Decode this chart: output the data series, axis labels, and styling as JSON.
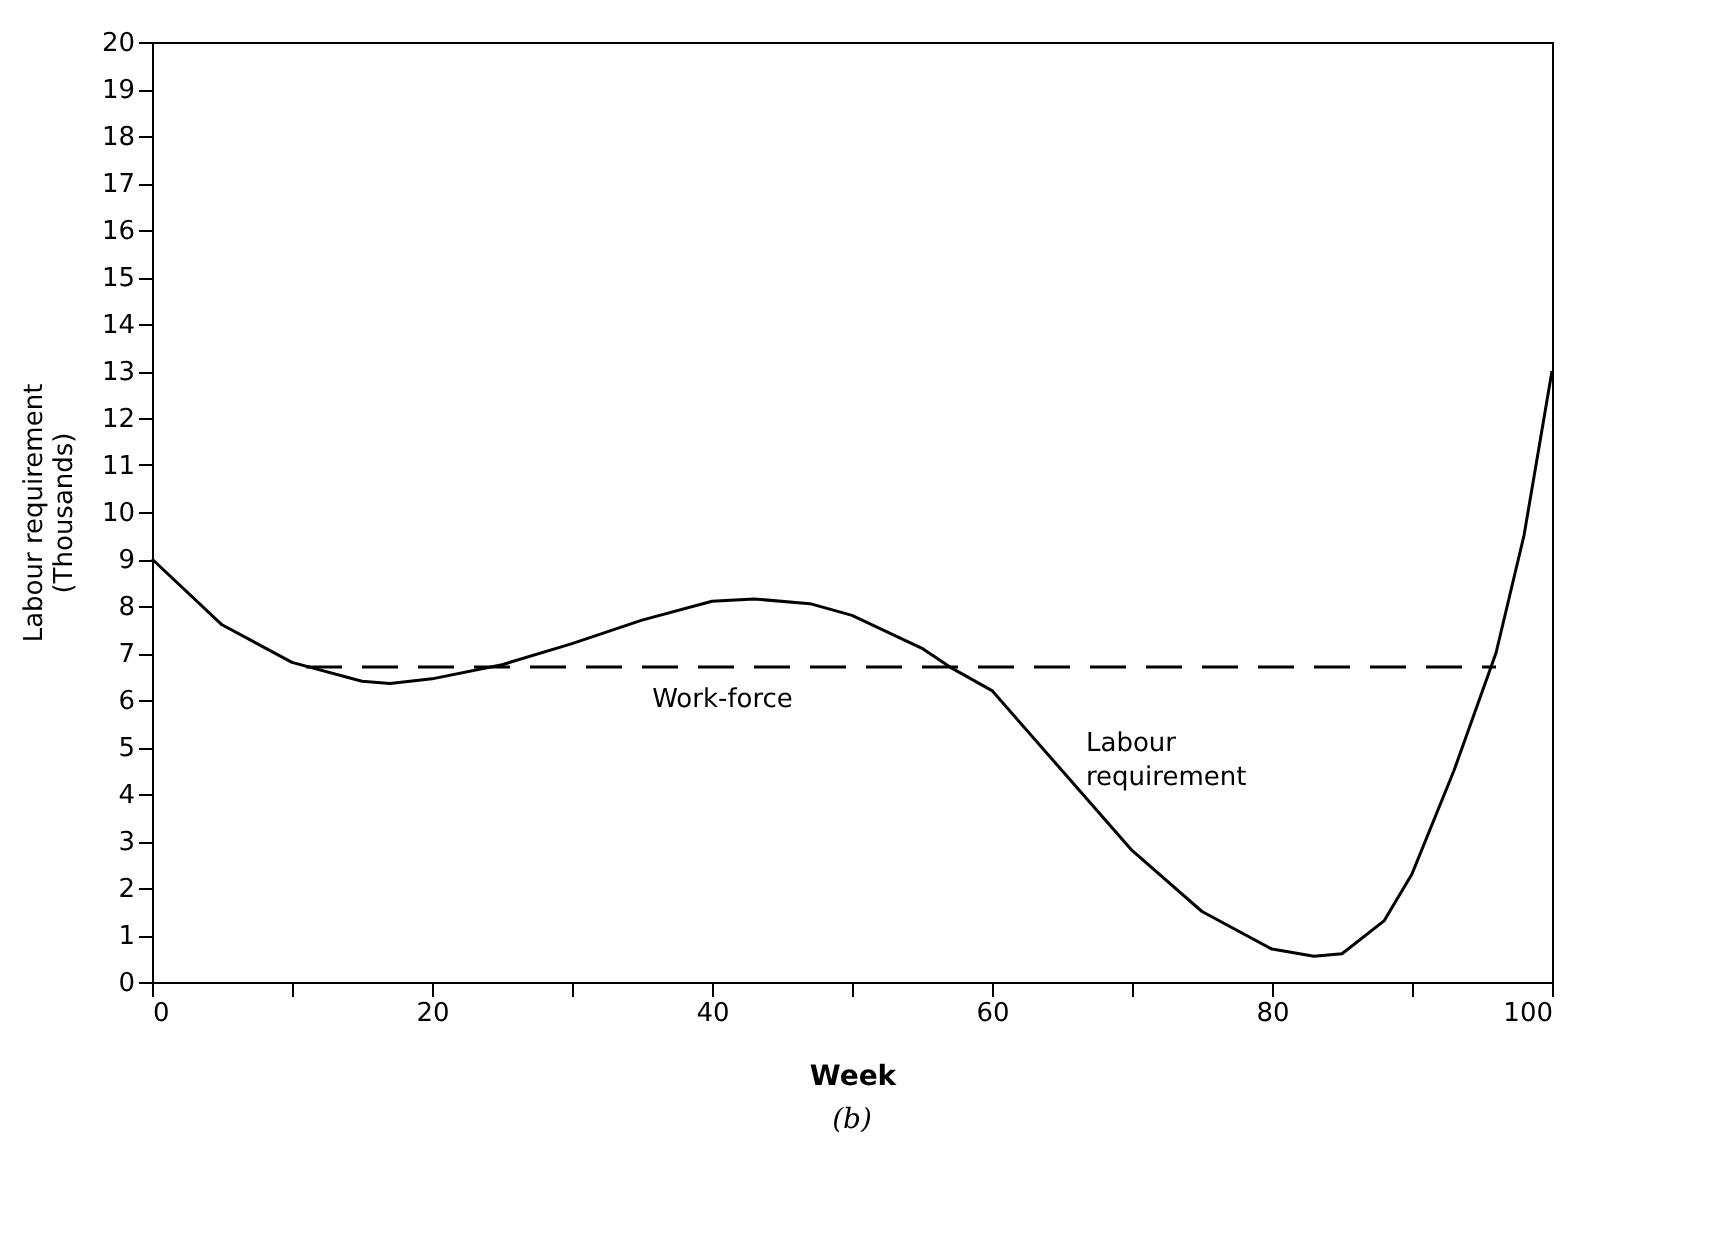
{
  "chart_data": {
    "type": "line",
    "xlabel": "Week",
    "ylabel": "Labour requirement\n(Thousands)",
    "xlim": [
      0,
      100
    ],
    "ylim": [
      0,
      20
    ],
    "xticks": [
      0,
      {
        "value": 10,
        "label": null
      },
      20,
      {
        "value": 30,
        "label": null
      },
      40,
      {
        "value": 50,
        "label": null
      },
      60,
      {
        "value": 70,
        "label": null
      },
      80,
      {
        "value": 90,
        "label": null
      },
      100
    ],
    "yticks": [
      0,
      1,
      2,
      3,
      4,
      5,
      6,
      7,
      8,
      9,
      10,
      11,
      12,
      13,
      14,
      15,
      16,
      17,
      18,
      19,
      20
    ],
    "grid": false,
    "legend": false,
    "marker": "none",
    "series": [
      {
        "name": "Labour\nrequirement",
        "color": "#000000",
        "line_style": "solid",
        "x": [
          0,
          5,
          10,
          15,
          17,
          20,
          25,
          30,
          35,
          40,
          43,
          47,
          50,
          55,
          57,
          60,
          65,
          70,
          75,
          80,
          83,
          85,
          88,
          90,
          93,
          96,
          98,
          100
        ],
        "values": [
          9,
          7.6,
          6.8,
          6.4,
          6.35,
          6.45,
          6.75,
          7.2,
          7.7,
          8.1,
          8.15,
          8.05,
          7.8,
          7.1,
          6.7,
          6.2,
          4.5,
          2.8,
          1.5,
          0.7,
          0.55,
          0.6,
          1.3,
          2.3,
          4.5,
          7.0,
          9.5,
          13
        ]
      },
      {
        "name": "Work-force",
        "color": "#000000",
        "line_style": "dashed",
        "x": [
          11,
          96
        ],
        "values": [
          6.7,
          6.7
        ]
      }
    ],
    "annotations": [
      "(b)"
    ]
  }
}
